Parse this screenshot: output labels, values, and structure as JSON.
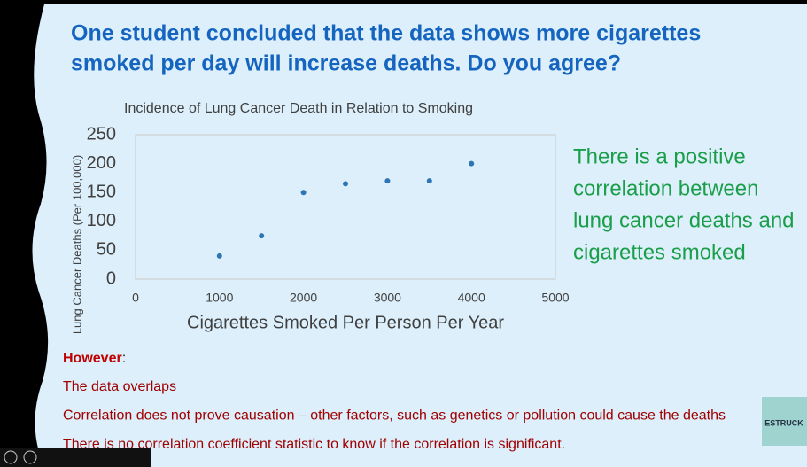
{
  "slide": {
    "title_lines": [
      "One student concluded that the data shows more cigarettes",
      "smoked per day will increase deaths.  Do you agree?"
    ],
    "side_text_lines": [
      "There is a positive",
      "correlation between",
      "lung cancer deaths and",
      "cigarettes smoked"
    ],
    "notes_heading": "However",
    "notes_heading_colon": ":",
    "notes": [
      "The data overlaps",
      "Correlation does not prove causation – other factors, such as genetics or pollution could cause the deaths",
      "There is no correlation coefficient statistic to know if the correlation is significant."
    ],
    "logo_text": "ESTRUCK"
  },
  "chart_data": {
    "type": "scatter",
    "title": "Incidence of Lung Cancer Death in Relation to Smoking",
    "x_label": "Cigarettes Smoked Per Person Per Year",
    "y_label": "Lung Cancer Deaths (Per 100,000)",
    "x": [
      1000,
      1500,
      2000,
      2500,
      3000,
      3500,
      4000
    ],
    "values": [
      40,
      75,
      150,
      165,
      170,
      170,
      200
    ],
    "color": "#2e75b6",
    "xlim": [
      0,
      5000
    ],
    "xticks": [
      0,
      1000,
      2000,
      3000,
      4000,
      5000
    ],
    "ylim": [
      0,
      250
    ],
    "yticks": [
      0,
      50,
      100,
      150,
      200,
      250
    ],
    "grid": false
  }
}
